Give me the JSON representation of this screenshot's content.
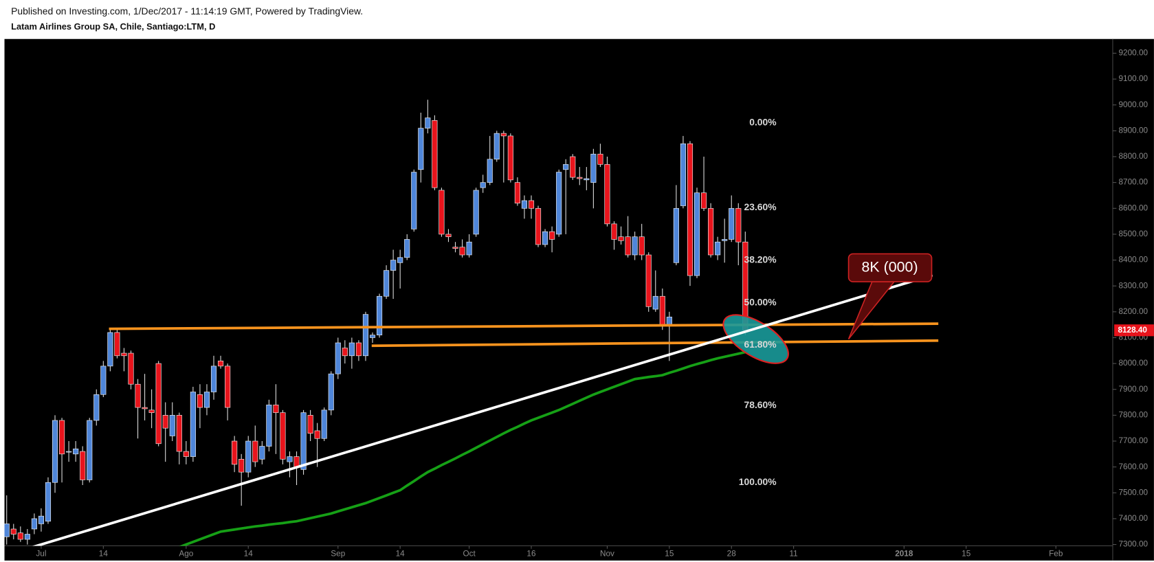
{
  "header": {
    "published": "Published on Investing.com, 1/Dec/2017 - 11:14:19 GMT, Powered by TradingView.",
    "symbol": "Latam Airlines Group SA, Chile, Santiago:LTM, D"
  },
  "chart_data": {
    "type": "candlestick",
    "categories": [
      null,
      null,
      null,
      null,
      null,
      "Jul",
      null,
      null,
      null,
      null,
      null,
      null,
      null,
      null,
      "14",
      null,
      null,
      null,
      null,
      null,
      null,
      null,
      null,
      null,
      null,
      null,
      "Ago",
      null,
      null,
      null,
      null,
      null,
      null,
      null,
      null,
      "14",
      null,
      null,
      null,
      null,
      null,
      null,
      null,
      null,
      null,
      null,
      null,
      null,
      "Sep",
      null,
      null,
      null,
      null,
      null,
      null,
      null,
      null,
      "14",
      null,
      null,
      null,
      null,
      null,
      null,
      null,
      null,
      null,
      "Oct",
      null,
      null,
      null,
      null,
      null,
      null,
      null,
      null,
      "16",
      null,
      null,
      null,
      null,
      null,
      null,
      null,
      null,
      null,
      null,
      "Nov",
      null,
      null,
      null,
      null,
      null,
      null,
      null,
      null,
      "15",
      null,
      null,
      null,
      null,
      null,
      null,
      null,
      null,
      "28",
      null,
      null,
      null,
      null,
      null,
      null,
      null,
      null,
      "11",
      null,
      null,
      null,
      null,
      null,
      null,
      null,
      null,
      null,
      null,
      null,
      null,
      null,
      null,
      null,
      "2018",
      null,
      null,
      null,
      null,
      null,
      null,
      null,
      null,
      "15",
      null,
      null,
      null,
      null,
      null,
      null,
      null,
      null,
      null,
      null,
      null,
      null,
      "Feb",
      null,
      null,
      null,
      null,
      null,
      null,
      null,
      null
    ],
    "open": [
      7330,
      7360,
      7345,
      7320,
      7360,
      7380,
      7390,
      7540,
      7780,
      7660,
      7650,
      7660,
      7550,
      7780,
      7880,
      7990,
      8120,
      8040,
      8040,
      7920,
      7830,
      7820,
      8000,
      7800,
      7720,
      7800,
      7660,
      7640,
      7880,
      7830,
      7890,
      8010,
      7990,
      7700,
      7630,
      7580,
      7700,
      7630,
      7680,
      7840,
      7810,
      7620,
      7640,
      7590,
      7800,
      7740,
      7710,
      7820,
      7960,
      8060,
      8030,
      8080,
      8030,
      8100,
      8110,
      8260,
      8360,
      8390,
      8410,
      8520,
      8750,
      8910,
      8940,
      8670,
      8500,
      8450,
      8450,
      8420,
      8500,
      8680,
      8700,
      8790,
      8890,
      8880,
      8700,
      8600,
      8630,
      8600,
      8460,
      8510,
      8500,
      8750,
      8800,
      8720,
      8710,
      8700,
      8810,
      8770,
      8540,
      8490,
      8490,
      8420,
      8490,
      8420,
      8210,
      8260,
      8150,
      8390,
      8610,
      8850,
      8340,
      8660,
      8600,
      8420,
      8475,
      8480,
      8600,
      8470,
      null,
      null,
      null,
      null,
      null,
      null,
      null,
      null,
      null,
      null,
      null,
      null,
      null,
      null,
      null,
      null,
      null,
      null,
      null,
      null,
      null,
      null,
      null,
      null,
      null,
      null,
      null,
      null,
      null,
      null,
      null,
      null,
      null,
      null,
      null,
      null,
      null,
      null,
      null,
      null,
      null,
      null,
      null,
      null,
      null,
      null,
      null,
      null,
      null,
      null,
      null,
      null,
      null
    ],
    "high": [
      7490,
      7380,
      7370,
      7360,
      7420,
      7440,
      7560,
      7800,
      7790,
      7700,
      7700,
      7680,
      7790,
      7900,
      8010,
      8130,
      8130,
      8060,
      8050,
      7940,
      7960,
      7900,
      8010,
      7850,
      7850,
      7810,
      7700,
      7910,
      7920,
      7920,
      8030,
      8030,
      8000,
      7720,
      7650,
      7720,
      7760,
      7700,
      7860,
      7920,
      7820,
      7660,
      7660,
      7820,
      7820,
      7770,
      7830,
      7970,
      8100,
      8090,
      8100,
      8090,
      8200,
      8120,
      8270,
      8380,
      8440,
      8440,
      8500,
      8750,
      8970,
      9020,
      8960,
      8680,
      8520,
      8470,
      8480,
      8500,
      8680,
      8730,
      8880,
      8900,
      8900,
      8890,
      8720,
      8650,
      8650,
      8610,
      8520,
      8530,
      8750,
      8790,
      8810,
      8760,
      8760,
      8830,
      8850,
      8800,
      8550,
      8530,
      8570,
      8510,
      8540,
      8430,
      8360,
      8290,
      8200,
      8690,
      8880,
      8860,
      8680,
      8800,
      8620,
      8490,
      8560,
      8650,
      8620,
      8510,
      null,
      null,
      null,
      null,
      null,
      null,
      null,
      null,
      null,
      null,
      null,
      null,
      null,
      null,
      null,
      null,
      null,
      null,
      null,
      null,
      null,
      null,
      null,
      null,
      null,
      null,
      null,
      null,
      null,
      null,
      null,
      null,
      null,
      null,
      null,
      null,
      null,
      null,
      null,
      null,
      null,
      null,
      null,
      null,
      null,
      null,
      null,
      null,
      null,
      null,
      null,
      null,
      null
    ],
    "low": [
      7300,
      7320,
      7310,
      7300,
      7340,
      7350,
      7380,
      7500,
      7540,
      7620,
      7620,
      7530,
      7540,
      7760,
      7870,
      7970,
      8020,
      7970,
      7900,
      7710,
      7780,
      7750,
      7680,
      7620,
      7700,
      7610,
      7610,
      7620,
      7750,
      7800,
      7860,
      7980,
      7780,
      7580,
      7450,
      7560,
      7600,
      7610,
      7660,
      7650,
      7610,
      7560,
      7530,
      7570,
      7700,
      7600,
      7700,
      7800,
      7940,
      8000,
      7980,
      8010,
      8010,
      8080,
      8100,
      8250,
      8250,
      8290,
      8400,
      8510,
      8700,
      8890,
      8670,
      8490,
      8470,
      8430,
      8410,
      8410,
      8490,
      8660,
      8690,
      8780,
      8700,
      8700,
      8610,
      8560,
      8560,
      8450,
      8450,
      8430,
      8490,
      8500,
      8710,
      8690,
      8670,
      8600,
      8760,
      8530,
      8440,
      8460,
      8410,
      8400,
      8400,
      8200,
      8200,
      8130,
      8010,
      8380,
      8600,
      8300,
      8330,
      8590,
      8410,
      8400,
      8390,
      8470,
      8380,
      8110,
      null,
      null,
      null,
      null,
      null,
      null,
      null,
      null,
      null,
      null,
      null,
      null,
      null,
      null,
      null,
      null,
      null,
      null,
      null,
      null,
      null,
      null,
      null,
      null,
      null,
      null,
      null,
      null,
      null,
      null,
      null,
      null,
      null,
      null,
      null,
      null,
      null,
      null,
      null,
      null,
      null,
      null,
      null,
      null,
      null,
      null,
      null,
      null,
      null,
      null,
      null,
      null,
      null
    ],
    "close": [
      7380,
      7340,
      7320,
      7340,
      7400,
      7410,
      7540,
      7780,
      7650,
      7660,
      7670,
      7550,
      7780,
      7880,
      7990,
      8120,
      8030,
      8030,
      7920,
      7830,
      7825,
      7810,
      7690,
      7750,
      7800,
      7660,
      7640,
      7890,
      7830,
      7890,
      7990,
      7990,
      7830,
      7610,
      7580,
      7700,
      7620,
      7680,
      7840,
      7810,
      7630,
      7640,
      7600,
      7810,
      7730,
      7710,
      7820,
      7960,
      8080,
      8030,
      8080,
      8030,
      8190,
      8110,
      8260,
      8360,
      8400,
      8410,
      8480,
      8740,
      8910,
      8950,
      8680,
      8500,
      8490,
      8445,
      8420,
      8470,
      8670,
      8700,
      8790,
      8890,
      8880,
      8710,
      8620,
      8630,
      8600,
      8460,
      8510,
      8480,
      8740,
      8770,
      8720,
      8715,
      8715,
      8810,
      8770,
      8540,
      8480,
      8475,
      8420,
      8490,
      8420,
      8220,
      8260,
      8150,
      8180,
      8600,
      8850,
      8340,
      8660,
      8600,
      8420,
      8470,
      8480,
      8600,
      8470,
      8128.4,
      null,
      null,
      null,
      null,
      null,
      null,
      null,
      null,
      null,
      null,
      null,
      null,
      null,
      null,
      null,
      null,
      null,
      null,
      null,
      null,
      null,
      null,
      null,
      null,
      null,
      null,
      null,
      null,
      null,
      null,
      null,
      null,
      null,
      null,
      null,
      null,
      null,
      null,
      null,
      null,
      null,
      null,
      null,
      null,
      null,
      null,
      null,
      null,
      null,
      null,
      null,
      null,
      null
    ],
    "up_color": "#4f86d9",
    "down_color": "#e8141c",
    "moving_average": {
      "color": "#16a016",
      "values": [
        null,
        null,
        null,
        null,
        null,
        null,
        null,
        null,
        null,
        null,
        null,
        null,
        null,
        null,
        null,
        null,
        null,
        null,
        null,
        null,
        null,
        null,
        null,
        null,
        null,
        7290,
        7300,
        7310,
        7320,
        7330,
        7340,
        7350,
        7354,
        7358,
        7362,
        7366,
        7370,
        7373,
        7377,
        7380,
        7383,
        7387,
        7390,
        7396,
        7402,
        7408,
        7414,
        7420,
        7428,
        7436,
        7444,
        7452,
        7460,
        7470,
        7480,
        7490,
        7500,
        7510,
        7528,
        7545,
        7563,
        7580,
        7593,
        7607,
        7620,
        7633,
        7647,
        7660,
        7674,
        7688,
        7702,
        7716,
        7730,
        7743,
        7755,
        7768,
        7780,
        7790,
        7800,
        7810,
        7820,
        7832,
        7844,
        7856,
        7868,
        7880,
        7890,
        7900,
        7910,
        7920,
        7930,
        7940,
        7944,
        7948,
        7951,
        7955,
        7964,
        7972,
        7981,
        7990,
        7998,
        8005,
        8013,
        8020,
        8026,
        8032,
        8038,
        8044,
        null,
        null,
        null,
        null,
        null,
        null,
        null,
        null,
        null,
        null,
        null,
        null,
        null,
        null,
        null,
        null,
        null,
        null,
        null,
        null,
        null,
        null,
        null,
        null,
        null,
        null,
        null,
        null,
        null,
        null,
        null,
        null,
        null,
        null,
        null,
        null,
        null,
        null,
        null,
        null,
        null,
        null,
        null,
        null,
        null,
        null,
        null,
        null,
        null,
        null,
        null,
        null,
        null
      ]
    },
    "last_price": {
      "value": 8128.4,
      "label": "8128.40"
    },
    "ylim": [
      7295,
      9255
    ],
    "yticks": [
      {
        "value": 7300,
        "label": "7300.00"
      },
      {
        "value": 7400,
        "label": "7400.00"
      },
      {
        "value": 7500,
        "label": "7500.00"
      },
      {
        "value": 7600,
        "label": "7600.00"
      },
      {
        "value": 7700,
        "label": "7700.00"
      },
      {
        "value": 7800,
        "label": "7800.00"
      },
      {
        "value": 7900,
        "label": "7900.00"
      },
      {
        "value": 8000,
        "label": "8000.00"
      },
      {
        "value": 8100,
        "label": "8100.00"
      },
      {
        "value": 8200,
        "label": "8200.00"
      },
      {
        "value": 8300,
        "label": "8300.00"
      },
      {
        "value": 8400,
        "label": "8400.00"
      },
      {
        "value": 8500,
        "label": "8500.00"
      },
      {
        "value": 8600,
        "label": "8600.00"
      },
      {
        "value": 8700,
        "label": "8700.00"
      },
      {
        "value": 8800,
        "label": "8800.00"
      },
      {
        "value": 8900,
        "label": "8900.00"
      },
      {
        "value": 9000,
        "label": "9000.00"
      },
      {
        "value": 9100,
        "label": "9100.00"
      },
      {
        "value": 9200,
        "label": "9200.00"
      }
    ],
    "fibonacci": {
      "high": 8930,
      "low": 7540,
      "levels": [
        0,
        23.6,
        38.2,
        50,
        61.8,
        78.6,
        100
      ],
      "level_labels": [
        "0.00%",
        "23.60%",
        "38.20%",
        "50.00%",
        "61.80%",
        "78.60%",
        "100.00%"
      ]
    },
    "annotation": "8K (000)"
  }
}
